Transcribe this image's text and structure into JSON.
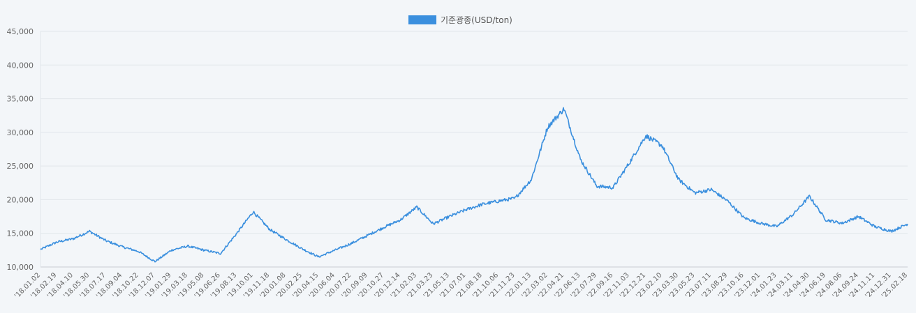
{
  "chart_data": {
    "type": "line",
    "title": "",
    "xlabel": "",
    "ylabel": "",
    "ylim": [
      10000,
      45000
    ],
    "grid": true,
    "legend_position": "top-center",
    "series": [
      {
        "name": "기준광종(USD/ton)",
        "color": "#3a8fde",
        "x": [
          "'18.01.02",
          "'18.02.19",
          "'18.04.10",
          "'18.05.30",
          "'18.07.17",
          "'18.09.04",
          "'18.10.22",
          "'18.12.07",
          "'19.01.29",
          "'19.03.18",
          "'19.05.08",
          "'19.06.26",
          "'19.08.13",
          "'19.10.01",
          "'19.11.18",
          "'20.01.08",
          "'20.02.25",
          "'20.04.15",
          "'20.06.04",
          "'20.07.22",
          "'20.09.09",
          "'20.10.27",
          "'20.12.14",
          "'21.02.03",
          "'21.03.23",
          "'21.05.13",
          "'21.07.01",
          "'21.08.18",
          "'21.10.06",
          "'21.11.23",
          "'22.01.13",
          "'22.03.02",
          "'22.04.21",
          "'22.06.13",
          "'22.07.29",
          "'22.09.16",
          "'22.11.03",
          "'22.12.21",
          "'23.02.10",
          "'23.03.30",
          "'23.05.23",
          "'23.07.11",
          "'23.08.29",
          "'23.10.16",
          "'23.12.01",
          "'24.01.23",
          "'24.03.11",
          "'24.04.30",
          "'24.06.19",
          "'24.08.06",
          "'24.09.24",
          "'24.11.11",
          "'24.12.31",
          "'25.02.18"
        ],
        "values": [
          12600,
          13700,
          14200,
          15300,
          13900,
          13000,
          12300,
          10800,
          12500,
          13100,
          12500,
          12000,
          15000,
          18200,
          15600,
          14100,
          12700,
          11500,
          12500,
          13500,
          14700,
          15900,
          17000,
          18900,
          16400,
          17500,
          18500,
          19300,
          19800,
          20200,
          23000,
          30800,
          33500,
          26000,
          22000,
          21800,
          25500,
          29500,
          28000,
          23000,
          21000,
          21500,
          19800,
          17300,
          16500,
          16000,
          17800,
          20500,
          17000,
          16500,
          17500,
          16000,
          15300,
          16400
        ]
      }
    ]
  }
}
